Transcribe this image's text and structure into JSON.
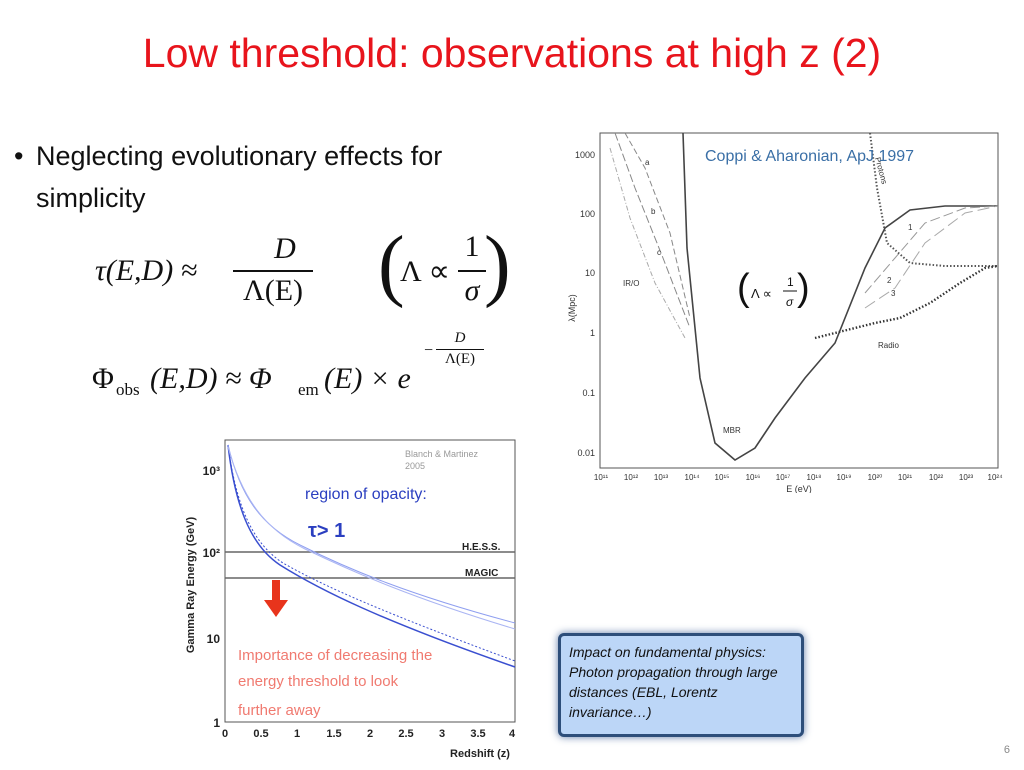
{
  "slide": {
    "title": "Low threshold: observations at high z (2)",
    "bullet": "Neglecting evolutionary effects for simplicity",
    "number": "6"
  },
  "equations": {
    "tau_lhs": "τ(E,D) ≈",
    "tau_num": "D",
    "tau_den": "Λ(E)",
    "lambda_prop": "Λ ∝",
    "lambda_num": "1",
    "lambda_den": "σ",
    "phi_lhs": "Φ",
    "phi_obs_sub": "obs",
    "phi_args": "(E,D) ≈ Φ",
    "phi_em_sub": "em",
    "phi_rhs": "(E) × e",
    "exp_num": "D",
    "exp_den": "Λ(E)",
    "exp_sign": "−"
  },
  "figure_mfp": {
    "citation": "Coppi & Aharonian, ApJ 1997",
    "ylabel": "λ(Mpc)",
    "xlabel": "E (eV)",
    "yticks": [
      "1000",
      "100",
      "10",
      "1",
      "0.1",
      "0.01"
    ],
    "xticks": [
      "10¹¹",
      "10¹²",
      "10¹³",
      "10¹⁴",
      "10¹⁵",
      "10¹⁶",
      "10¹⁷",
      "10¹⁸",
      "10¹⁹",
      "10²⁰",
      "10²¹",
      "10²²",
      "10²³",
      "10²⁴"
    ],
    "labels": {
      "a": "a",
      "b": "b",
      "c": "c",
      "iro": "IR/O",
      "mbr": "MBR",
      "radio": "Radio",
      "protons": "Protons",
      "one": "1",
      "two": "2",
      "three": "3"
    },
    "inset_prop": "Λ ∝",
    "inset_num": "1",
    "inset_den": "σ"
  },
  "figure_horizon": {
    "credit_line1": "Blanch & Martinez",
    "credit_line2": "2005",
    "ylabel": "Gamma Ray Energy (GeV)",
    "xlabel": "Redshift (z)",
    "yticks": [
      "10³",
      "10²",
      "10",
      "1"
    ],
    "xticks": [
      "0",
      "0.5",
      "1",
      "1.5",
      "2",
      "2.5",
      "3",
      "3.5",
      "4"
    ],
    "region_label": "region of opacity:",
    "tau_label": "τ> 1",
    "hess_label": "H.E.S.S.",
    "magic_label": "MAGIC",
    "importance_line1": "Importance of decreasing the",
    "importance_line2": "energy threshold to look",
    "importance_line3": "further away"
  },
  "callout": {
    "line1": "Impact on fundamental physics:",
    "line2": "Photon propagation through large distances (EBL, Lorentz invariance…)"
  }
}
